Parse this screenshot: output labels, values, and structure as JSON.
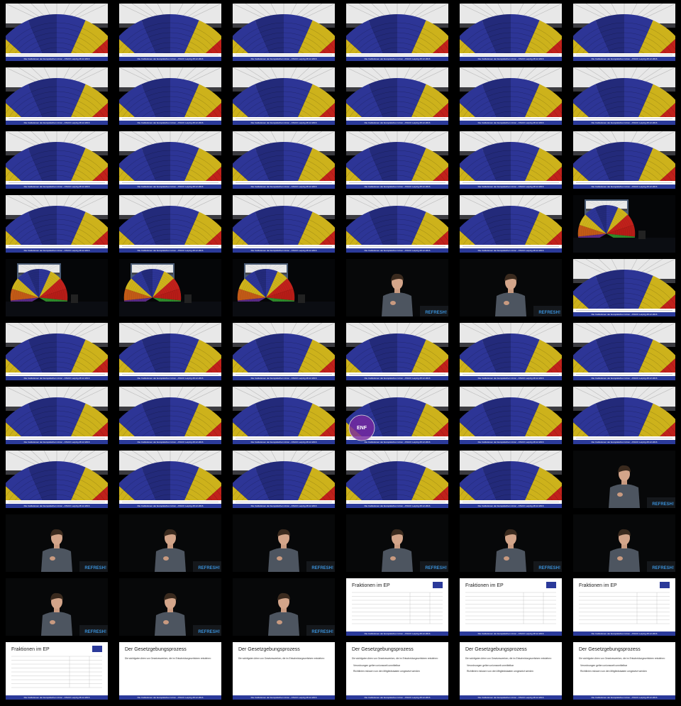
{
  "frames": [
    "hemicycle",
    "hemicycle",
    "hemicycle",
    "hemicycle",
    "hemicycle",
    "hemicycle",
    "hemicycle",
    "hemicycle",
    "hemicycle",
    "hemicycle",
    "hemicycle",
    "hemicycle",
    "hemicycle",
    "hemicycle",
    "hemicycle",
    "hemicycle",
    "hemicycle",
    "hemicycle",
    "hemicycle",
    "hemicycle",
    "hemicycle",
    "hemicycle",
    "hemicycle",
    "stage",
    "stage",
    "stage",
    "stage",
    "presenter",
    "presenter",
    "hemicycle",
    "hemicycle",
    "hemicycle",
    "hemicycle",
    "hemicycle",
    "hemicycle",
    "hemicycle",
    "hemicycle",
    "hemicycle",
    "hemicycle",
    "hemicycle-enf",
    "hemicycle",
    "hemicycle",
    "hemicycle",
    "hemicycle",
    "hemicycle",
    "hemicycle",
    "hemicycle",
    "presenter",
    "presenter",
    "presenter",
    "presenter",
    "presenter",
    "presenter",
    "presenter",
    "presenter",
    "presenter",
    "presenter",
    "fraktionen",
    "fraktionen",
    "fraktionen",
    "fraktionen",
    "gesetz",
    "gesetz",
    "gesetz-bullets",
    "gesetz-bullets",
    "gesetz-bullets"
  ],
  "footer": "Die Institutionen der Europäischen Union - ATACK Leipzig 28.12.2016",
  "stage_logo": "REFRESH!",
  "enf_label": "ENF",
  "fraktionen_title": "Fraktionen im EP",
  "gesetz_title": "Der Gesetzgebungsprozess",
  "gesetz_intro": "Die wichtigsten Arten von Gesetzeswerken, die im Entscheidungsverfahren entstehen:",
  "bullets": [
    "Verordnungen gelten unionsweit unmittelbar",
    "Richtlinien müssen von den Mitgliedstaaten umgesetzt werden"
  ]
}
